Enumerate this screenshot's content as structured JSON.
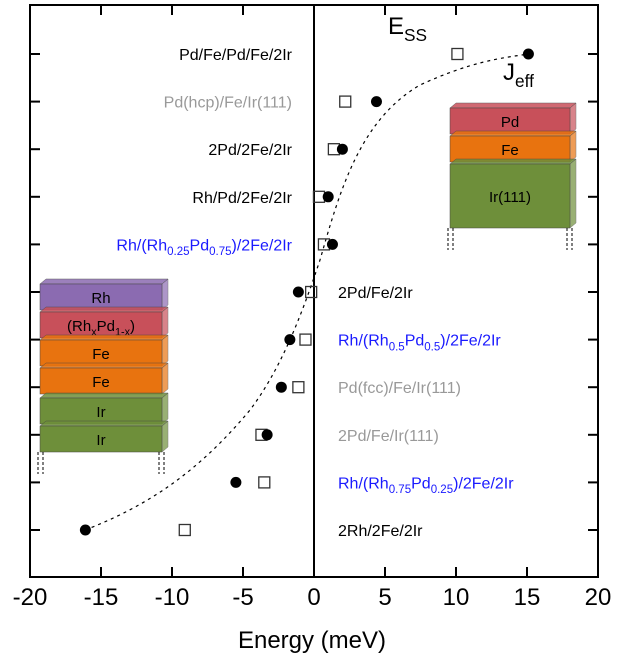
{
  "chart_data": {
    "type": "scatter",
    "orientation": "horizontal",
    "categories": [
      [
        "Pd/Fe/Pd/Fe/2Ir"
      ],
      [
        "Pd(hcp)/Fe/Ir(111)"
      ],
      [
        "2Pd/2Fe/2Ir"
      ],
      [
        "Rh/Pd/2Fe/2Ir"
      ],
      [
        "Rh/(Rh",
        "0.25",
        "Pd",
        "0.75",
        ")/2Fe/2Ir"
      ],
      [
        "2Pd/Fe/2Ir"
      ],
      [
        "Rh/(Rh",
        "0.5",
        "Pd",
        "0.5",
        ")/2Fe/2Ir"
      ],
      [
        "Pd(fcc)/Fe/Ir(111)"
      ],
      [
        "2Pd/Fe/Ir(111)"
      ],
      [
        "Rh/(Rh",
        "0.75",
        "Pd",
        "0.25",
        ")/2Fe/2Ir"
      ],
      [
        "2Rh/2Fe/2Ir"
      ]
    ],
    "category_colors": [
      "#000000",
      "#999999",
      "#000000",
      "#000000",
      "#1a1aff",
      "#000000",
      "#1a1aff",
      "#999999",
      "#999999",
      "#1a1aff",
      "#000000"
    ],
    "series": [
      {
        "name": [
          "E",
          "SS"
        ],
        "marker": "open-square",
        "color": "#333333",
        "values": [
          10.1,
          2.2,
          1.4,
          0.35,
          0.7,
          -0.2,
          -0.6,
          -1.1,
          -3.7,
          -3.5,
          -9.1
        ]
      },
      {
        "name": [
          "J",
          "eff"
        ],
        "marker": "filled-circle",
        "color": "#000000",
        "values": [
          15.1,
          4.4,
          2.0,
          1.0,
          1.3,
          -1.1,
          -1.7,
          -2.3,
          -3.3,
          -5.5,
          -16.1
        ]
      }
    ],
    "xlabel": "Energy (meV)",
    "xlim": [
      -20,
      20
    ],
    "xticks": [
      -20,
      -15,
      -10,
      -5,
      0,
      5,
      10,
      15,
      20
    ],
    "insets": [
      {
        "layers": [
          [
            "Rh"
          ],
          [
            "(Rh",
            "x",
            "Pd",
            "1-x",
            ")"
          ],
          [
            "Fe"
          ],
          [
            "Fe"
          ],
          [
            "Ir"
          ],
          [
            "Ir"
          ]
        ]
      },
      {
        "layers": [
          [
            "Pd"
          ],
          [
            "Fe"
          ],
          [
            "Ir(111)"
          ]
        ]
      }
    ]
  }
}
